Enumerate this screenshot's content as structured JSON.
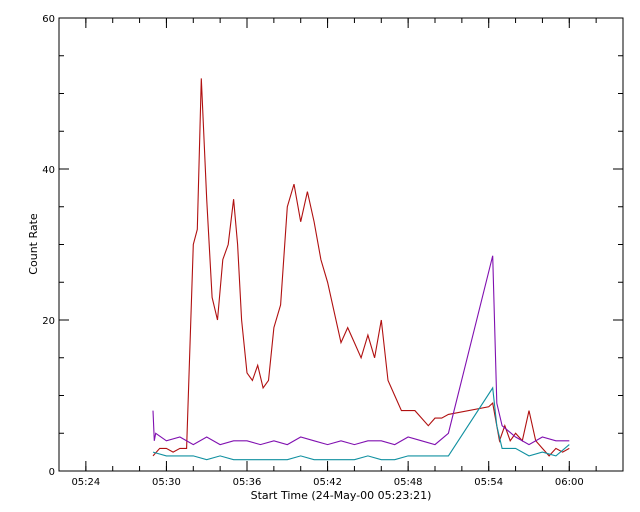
{
  "chart_data": {
    "type": "line",
    "title": "",
    "xlabel": "Start Time (24-May-00 05:23:21)",
    "ylabel": "Count Rate",
    "xlim": [
      "05:22",
      "06:04"
    ],
    "ylim": [
      0,
      60
    ],
    "x_ticks": [
      "05:24",
      "05:30",
      "05:36",
      "05:42",
      "05:48",
      "05:54",
      "06:00"
    ],
    "y_ticks": [
      0,
      20,
      40,
      60
    ],
    "grid": false,
    "legend": "none",
    "series": [
      {
        "color": "#b01010",
        "x": [
          "05:29",
          "05:29.5",
          "05:30",
          "05:30.5",
          "05:31",
          "05:31.5",
          "05:32",
          "05:32.3",
          "05:32.6",
          "05:33",
          "05:33.4",
          "05:33.8",
          "05:34.2",
          "05:34.6",
          "05:35",
          "05:35.3",
          "05:35.6",
          "05:36",
          "05:36.4",
          "05:36.8",
          "05:37.2",
          "05:37.6",
          "05:38",
          "05:38.5",
          "05:39",
          "05:39.5",
          "05:40",
          "05:40.5",
          "05:41",
          "05:41.5",
          "05:42",
          "05:42.5",
          "05:43",
          "05:43.5",
          "05:44",
          "05:44.5",
          "05:45",
          "05:45.5",
          "05:46",
          "05:46.5",
          "05:47",
          "05:47.5",
          "05:48",
          "05:48.5",
          "05:49",
          "05:49.5",
          "05:50",
          "05:50.5",
          "05:51",
          "05:54",
          "05:54.3",
          "05:54.8",
          "05:55.2",
          "05:55.6",
          "05:56",
          "05:56.5",
          "05:57",
          "05:57.5",
          "05:58",
          "05:58.5",
          "05:59",
          "05:59.5",
          "06:00"
        ],
        "y": [
          2,
          3,
          3,
          2.5,
          3,
          3,
          30,
          32,
          52,
          36,
          23,
          20,
          28,
          30,
          36,
          30,
          20,
          13,
          12,
          14,
          11,
          12,
          19,
          22,
          35,
          38,
          33,
          37,
          33,
          28,
          25,
          21,
          17,
          19,
          17,
          15,
          18,
          15,
          20,
          12,
          10,
          8,
          8,
          8,
          7,
          6,
          7,
          7,
          7.5,
          8.5,
          9,
          4,
          6,
          4,
          5,
          4,
          8,
          4,
          3,
          2,
          3,
          2.5,
          3
        ]
      },
      {
        "color": "#8010b0",
        "x": [
          "05:29",
          "05:29.1",
          "05:29.2",
          "05:30",
          "05:31",
          "05:32",
          "05:33",
          "05:34",
          "05:35",
          "05:36",
          "05:37",
          "05:38",
          "05:39",
          "05:40",
          "05:41",
          "05:42",
          "05:43",
          "05:44",
          "05:45",
          "05:46",
          "05:47",
          "05:48",
          "05:49",
          "05:50",
          "05:51",
          "05:54.3",
          "05:54.6",
          "05:55",
          "05:56",
          "05:57",
          "05:58",
          "05:59",
          "06:00"
        ],
        "y": [
          8,
          4,
          5,
          4,
          4.5,
          3.5,
          4.5,
          3.5,
          4,
          4,
          3.5,
          4,
          3.5,
          4.5,
          4,
          3.5,
          4,
          3.5,
          4,
          4,
          3.5,
          4.5,
          4,
          3.5,
          5,
          28.5,
          9,
          6,
          4.5,
          3.5,
          4.5,
          4,
          4
        ]
      },
      {
        "color": "#1090a0",
        "x": [
          "05:29",
          "05:30",
          "05:31",
          "05:32",
          "05:33",
          "05:34",
          "05:35",
          "05:36",
          "05:37",
          "05:38",
          "05:39",
          "05:40",
          "05:41",
          "05:42",
          "05:43",
          "05:44",
          "05:45",
          "05:46",
          "05:47",
          "05:48",
          "05:49",
          "05:50",
          "05:51",
          "05:54.3",
          "05:54.6",
          "05:55",
          "05:56",
          "05:57",
          "05:58",
          "05:59",
          "06:00"
        ],
        "y": [
          2.5,
          2,
          2,
          2,
          1.5,
          2,
          1.5,
          1.5,
          1.5,
          1.5,
          1.5,
          2,
          1.5,
          1.5,
          1.5,
          1.5,
          2,
          1.5,
          1.5,
          2,
          2,
          2,
          2,
          11,
          6,
          3,
          3,
          2,
          2.5,
          2,
          3.5
        ]
      }
    ]
  }
}
